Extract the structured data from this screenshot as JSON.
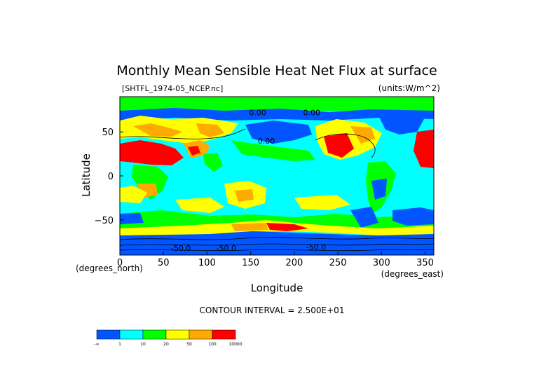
{
  "chart_data": {
    "type": "heatmap",
    "title": "Monthly Mean Sensible Heat Net Flux at surface",
    "file_label": "[SHTFL_1974-05_NCEP.nc]",
    "units_label": "(units:W/m^2)",
    "xlabel": "Longitude",
    "ylabel": "Latitude",
    "x_unit_label": "(degrees_east)",
    "y_unit_label": "(degrees_north)",
    "xlim": [
      0,
      360
    ],
    "ylim": [
      -90,
      90
    ],
    "x_ticks": [
      0,
      50,
      100,
      150,
      200,
      250,
      300,
      350
    ],
    "y_ticks": [
      -50,
      0,
      50
    ],
    "contour_interval_text": "CONTOUR INTERVAL = 2.500E+01",
    "contour_labels": [
      {
        "text": "0.00",
        "lon": 158,
        "lat": 72
      },
      {
        "text": "0.00",
        "lon": 220,
        "lat": 72
      },
      {
        "text": "0.00",
        "lon": 168,
        "lat": 40
      },
      {
        "text": "-50.0",
        "lon": 70,
        "lat": -82
      },
      {
        "text": "-50.0",
        "lon": 122,
        "lat": -82
      },
      {
        "text": "-50.0",
        "lon": 225,
        "lat": -81
      }
    ],
    "colorbar": {
      "colors": [
        "#0055ff",
        "#00ffff",
        "#00ff00",
        "#ffff00",
        "#ffaa00",
        "#ff0000"
      ],
      "labels": [
        "-∞",
        "1",
        "10",
        "20",
        "50",
        "100",
        "10000"
      ]
    }
  }
}
